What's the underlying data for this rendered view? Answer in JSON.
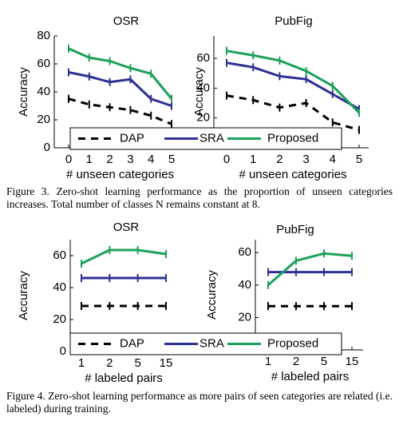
{
  "chart_data": [
    {
      "type": "line",
      "title": "OSR",
      "y_label": "Accuracy",
      "x_label": "# unseen categories",
      "categories": [
        "0",
        "1",
        "2",
        "3",
        "4",
        "5"
      ],
      "ylim": [
        0,
        80
      ],
      "yticks": [
        0,
        20,
        40,
        60,
        80
      ],
      "series": [
        {
          "name": "DAP",
          "color": "#000000",
          "dashed": true,
          "values": [
            35,
            31,
            29,
            27,
            23,
            17
          ]
        },
        {
          "name": "SRA",
          "color": "#2e3192",
          "values": [
            54,
            51,
            47,
            49,
            35,
            30
          ]
        },
        {
          "name": "Proposed",
          "color": "#1ba15a",
          "values": [
            71,
            64.5,
            62,
            57,
            53,
            35
          ]
        }
      ]
    },
    {
      "type": "line",
      "title": "PubFig",
      "y_label": "Accuracy",
      "x_label": "# unseen categories",
      "categories": [
        "0",
        "1",
        "2",
        "3",
        "4",
        "5"
      ],
      "ylim": [
        0,
        75
      ],
      "yticks": [
        20,
        40,
        60
      ],
      "series": [
        {
          "name": "DAP",
          "color": "#000000",
          "dashed": true,
          "values": [
            35,
            32,
            27,
            30,
            17,
            12
          ]
        },
        {
          "name": "SRA",
          "color": "#2e3192",
          "values": [
            57,
            54,
            48,
            46,
            36,
            26
          ]
        },
        {
          "name": "Proposed",
          "color": "#1ba15a",
          "values": [
            65,
            62,
            58.5,
            51.5,
            41.5,
            23.5
          ]
        }
      ]
    },
    {
      "type": "line",
      "title": "OSR",
      "y_label": "Accuracy",
      "x_label": "# labeled pairs",
      "categories": [
        "1",
        "2",
        "5",
        "15"
      ],
      "ylim": [
        0,
        70
      ],
      "yticks": [
        0,
        20,
        40,
        60
      ],
      "series": [
        {
          "name": "DAP",
          "color": "#000000",
          "dashed": true,
          "values": [
            28.5,
            28.5,
            28.5,
            28.5
          ]
        },
        {
          "name": "SRA",
          "color": "#2e3192",
          "values": [
            46,
            46,
            46,
            46
          ]
        },
        {
          "name": "Proposed",
          "color": "#1ba15a",
          "values": [
            55,
            63.5,
            63.5,
            61
          ]
        }
      ]
    },
    {
      "type": "line",
      "title": "PubFig",
      "y_label": "Accuracy",
      "x_label": "# labeled pairs",
      "categories": [
        "1",
        "2",
        "5",
        "15"
      ],
      "ylim": [
        0,
        68
      ],
      "yticks": [
        20,
        40,
        60
      ],
      "series": [
        {
          "name": "DAP",
          "color": "#000000",
          "dashed": true,
          "values": [
            27,
            27,
            27,
            27
          ]
        },
        {
          "name": "SRA",
          "color": "#2e3192",
          "values": [
            48,
            48,
            48,
            48
          ]
        },
        {
          "name": "Proposed",
          "color": "#1ba15a",
          "values": [
            40,
            55,
            59.5,
            58
          ]
        }
      ]
    }
  ],
  "captions": [
    "Figure 3. Zero-shot learning performance as the proportion of unseen categories increases. Total number of classes N remains constant at 8.",
    "Figure 4. Zero-shot learning performance as more pairs of seen categories are related (i.e. labeled) during training."
  ]
}
